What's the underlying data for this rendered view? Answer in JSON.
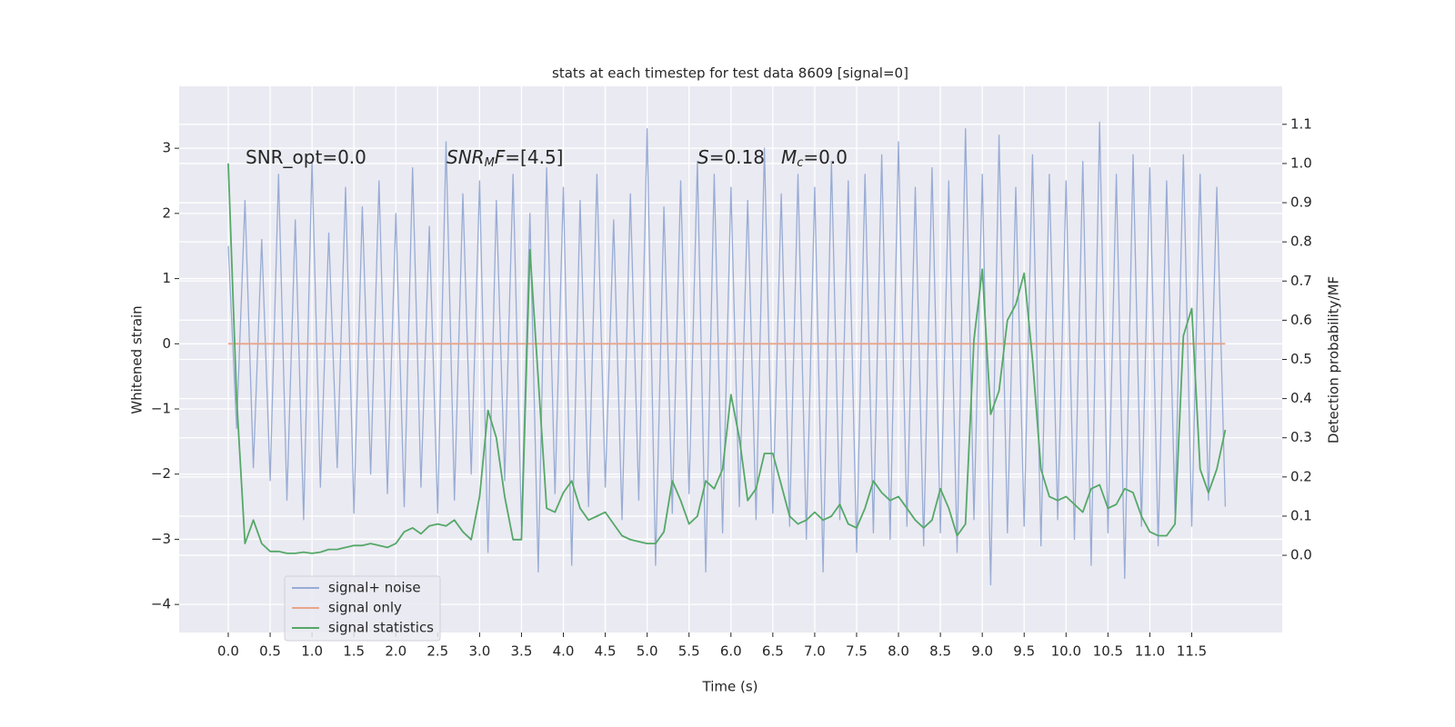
{
  "chart_data": {
    "type": "line",
    "title": "stats at each timestep for test data 8609 [signal=0]",
    "xlabel": "Time (s)",
    "ylabel": "Whitened strain",
    "y2label": "Detection probability/MF",
    "annotations": [
      {
        "parts": [
          {
            "text": "SNR_opt=0.0",
            "style": "normal"
          }
        ]
      },
      {
        "parts": [
          {
            "text": "SNR",
            "style": "italic"
          },
          {
            "text": "M",
            "style": "sub"
          },
          {
            "text": "F",
            "style": "italic"
          },
          {
            "text": "=[4.5]",
            "style": "normal"
          }
        ]
      },
      {
        "parts": [
          {
            "text": "S",
            "style": "italic"
          },
          {
            "text": "=0.18",
            "style": "normal"
          }
        ]
      },
      {
        "parts": [
          {
            "text": "M",
            "style": "italic"
          },
          {
            "text": "c",
            "style": "sub"
          },
          {
            "text": "=0.0",
            "style": "normal"
          }
        ]
      }
    ],
    "x": [
      0,
      0.1,
      0.2,
      0.3,
      0.4,
      0.5,
      0.6,
      0.7,
      0.8,
      0.9,
      1,
      1.1,
      1.2,
      1.3,
      1.4,
      1.5,
      1.6,
      1.7,
      1.8,
      1.9,
      2,
      2.1,
      2.2,
      2.3,
      2.4,
      2.5,
      2.6,
      2.7,
      2.8,
      2.9,
      3,
      3.1,
      3.2,
      3.3,
      3.4,
      3.5,
      3.6,
      3.7,
      3.8,
      3.9,
      4,
      4.1,
      4.2,
      4.3,
      4.4,
      4.5,
      4.6,
      4.7,
      4.8,
      4.9,
      5,
      5.1,
      5.2,
      5.3,
      5.4,
      5.5,
      5.6,
      5.7,
      5.8,
      5.9,
      6,
      6.1,
      6.2,
      6.3,
      6.4,
      6.5,
      6.6,
      6.7,
      6.8,
      6.9,
      7,
      7.1,
      7.2,
      7.3,
      7.4,
      7.5,
      7.6,
      7.7,
      7.8,
      7.9,
      8,
      8.1,
      8.2,
      8.3,
      8.4,
      8.5,
      8.6,
      8.7,
      8.8,
      8.9,
      9,
      9.1,
      9.2,
      9.3,
      9.4,
      9.5,
      9.6,
      9.7,
      9.8,
      9.9,
      10,
      10.1,
      10.2,
      10.3,
      10.4,
      10.5,
      10.6,
      10.7,
      10.8,
      10.9,
      11,
      11.1,
      11.2,
      11.3,
      11.4,
      11.5,
      11.6,
      11.7,
      11.8,
      11.9
    ],
    "series": [
      {
        "name": "signal+ noise",
        "color": "#98acd4",
        "axis": "y",
        "values": [
          1.5,
          -1.3,
          2.2,
          -1.9,
          1.6,
          -2.1,
          2.6,
          -2.4,
          1.9,
          -2.7,
          2.8,
          -2.2,
          1.7,
          -1.9,
          2.4,
          -2.6,
          2.1,
          -2.0,
          2.5,
          -2.3,
          2.0,
          -2.5,
          2.7,
          -2.2,
          1.8,
          -2.6,
          3.1,
          -2.4,
          2.3,
          -2.0,
          2.5,
          -3.2,
          2.2,
          -2.1,
          2.6,
          -2.8,
          2.0,
          -3.5,
          2.7,
          -2.3,
          2.4,
          -3.4,
          2.2,
          -2.5,
          2.6,
          -2.2,
          1.9,
          -2.7,
          2.3,
          -2.4,
          3.3,
          -3.4,
          2.1,
          -2.6,
          2.5,
          -2.3,
          2.8,
          -3.5,
          2.6,
          -2.9,
          2.4,
          -2.5,
          2.2,
          -2.7,
          3.0,
          -2.6,
          2.3,
          -2.8,
          2.6,
          -3.0,
          2.4,
          -3.5,
          2.8,
          -2.7,
          2.5,
          -3.2,
          2.6,
          -2.9,
          2.9,
          -3.0,
          3.1,
          -2.8,
          2.4,
          -3.1,
          2.7,
          -2.9,
          2.5,
          -3.2,
          3.3,
          -2.7,
          2.6,
          -3.7,
          3.2,
          -2.9,
          2.4,
          -2.8,
          2.9,
          -3.1,
          2.6,
          -2.7,
          2.5,
          -3.0,
          2.8,
          -3.4,
          3.4,
          -2.9,
          2.6,
          -3.6,
          2.9,
          -2.8,
          2.7,
          -3.1,
          2.5,
          -2.6,
          2.9,
          -2.8,
          2.6,
          -2.4,
          2.4,
          -2.5
        ]
      },
      {
        "name": "signal only",
        "color": "#e7a58a",
        "axis": "y",
        "values": [
          0,
          0,
          0,
          0,
          0,
          0,
          0,
          0,
          0,
          0,
          0,
          0,
          0,
          0,
          0,
          0,
          0,
          0,
          0,
          0,
          0,
          0,
          0,
          0,
          0,
          0,
          0,
          0,
          0,
          0,
          0,
          0,
          0,
          0,
          0,
          0,
          0,
          0,
          0,
          0,
          0,
          0,
          0,
          0,
          0,
          0,
          0,
          0,
          0,
          0,
          0,
          0,
          0,
          0,
          0,
          0,
          0,
          0,
          0,
          0,
          0,
          0,
          0,
          0,
          0,
          0,
          0,
          0,
          0,
          0,
          0,
          0,
          0,
          0,
          0,
          0,
          0,
          0,
          0,
          0,
          0,
          0,
          0,
          0,
          0,
          0,
          0,
          0,
          0,
          0,
          0,
          0,
          0,
          0,
          0,
          0,
          0,
          0,
          0,
          0,
          0,
          0,
          0,
          0,
          0,
          0,
          0,
          0,
          0,
          0,
          0,
          0,
          0,
          0,
          0,
          0,
          0,
          0,
          0,
          0
        ]
      },
      {
        "name": "signal statistics",
        "color": "#55a868",
        "axis": "y2",
        "values": [
          1.0,
          0.4,
          0.03,
          0.09,
          0.03,
          0.01,
          0.01,
          0.005,
          0.005,
          0.008,
          0.005,
          0.008,
          0.015,
          0.015,
          0.02,
          0.025,
          0.025,
          0.03,
          0.025,
          0.02,
          0.03,
          0.06,
          0.07,
          0.055,
          0.075,
          0.08,
          0.075,
          0.09,
          0.06,
          0.04,
          0.15,
          0.37,
          0.3,
          0.15,
          0.04,
          0.04,
          0.78,
          0.45,
          0.12,
          0.11,
          0.16,
          0.19,
          0.12,
          0.09,
          0.1,
          0.11,
          0.08,
          0.05,
          0.04,
          0.035,
          0.03,
          0.03,
          0.06,
          0.19,
          0.14,
          0.08,
          0.1,
          0.19,
          0.17,
          0.22,
          0.41,
          0.3,
          0.14,
          0.17,
          0.26,
          0.26,
          0.18,
          0.1,
          0.08,
          0.09,
          0.11,
          0.09,
          0.1,
          0.13,
          0.08,
          0.07,
          0.12,
          0.19,
          0.16,
          0.14,
          0.15,
          0.12,
          0.09,
          0.07,
          0.09,
          0.17,
          0.12,
          0.05,
          0.08,
          0.55,
          0.73,
          0.36,
          0.42,
          0.6,
          0.64,
          0.72,
          0.5,
          0.22,
          0.15,
          0.14,
          0.15,
          0.13,
          0.11,
          0.17,
          0.18,
          0.12,
          0.13,
          0.17,
          0.16,
          0.1,
          0.06,
          0.05,
          0.05,
          0.08,
          0.56,
          0.63,
          0.22,
          0.16,
          0.22,
          0.32
        ]
      }
    ],
    "xlim": [
      -0.586,
      12.58
    ],
    "ylim": [
      -4.43,
      3.95
    ],
    "y2lim": [
      -0.197,
      1.197
    ],
    "xticks": [
      {
        "value": 0,
        "label": "0.0"
      },
      0.5,
      {
        "value": 1,
        "label": "1.0"
      },
      1.5,
      {
        "value": 2,
        "label": "2.0"
      },
      2.5,
      {
        "value": 3,
        "label": "3.0"
      },
      3.5,
      {
        "value": 4,
        "label": "4.0"
      },
      4.5,
      {
        "value": 5,
        "label": "5.0"
      },
      5.5,
      {
        "value": 6,
        "label": "6.0"
      },
      6.5,
      {
        "value": 7,
        "label": "7.0"
      },
      7.5,
      {
        "value": 8,
        "label": "8.0"
      },
      8.5,
      {
        "value": 9,
        "label": "9.0"
      },
      9.5,
      {
        "value": 10,
        "label": "10.0"
      },
      10.5,
      {
        "value": 11,
        "label": "11.0"
      },
      11.5
    ],
    "yticks": [
      {
        "value": -4,
        "label": "−4"
      },
      {
        "value": -3,
        "label": "−3"
      },
      {
        "value": -2,
        "label": "−2"
      },
      {
        "value": -1,
        "label": "−1"
      },
      0,
      1,
      2,
      3
    ],
    "y2ticks": [
      {
        "value": 0,
        "label": "0.0"
      },
      0.1,
      0.2,
      0.3,
      0.4,
      0.5,
      0.6,
      0.7,
      0.8,
      0.9,
      {
        "value": 1,
        "label": "1.0"
      },
      1.1
    ],
    "grid": true,
    "legend": "lower left"
  }
}
